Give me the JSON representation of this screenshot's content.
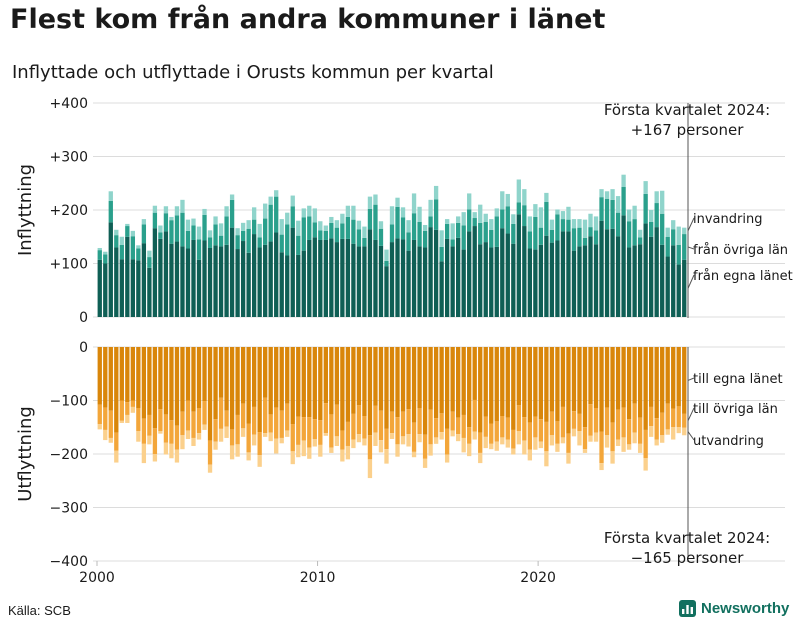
{
  "title": "Flest kom från andra kommuner i länet",
  "subtitle": "Inflyttade och utflyttade i Orusts kommun per kvartal",
  "source": "Källa: SCB",
  "brand": "Newsworthy",
  "colors": {
    "in_lan": "#0f5f55",
    "in_ovriga": "#2aa08c",
    "in_invandring": "#8fd4cb",
    "out_lan": "#d9860a",
    "out_ovriga": "#f3a63a",
    "out_utvandring": "#fbd08c",
    "brand": "#12705f"
  },
  "chart_data": [
    {
      "type": "bar",
      "stacked": true,
      "panel": "inflyttning",
      "ylabel": "Inflyttning",
      "ylim": [
        0,
        400
      ],
      "yticks": [
        "0",
        "+100",
        "+200",
        "+300",
        "+400"
      ],
      "ytick_values": [
        0,
        100,
        200,
        300,
        400
      ],
      "x_start": "2000Q1",
      "x_end": "2024Q1",
      "xticks": [
        "2000",
        "2010",
        "2020"
      ],
      "annotation": [
        "Första kvartalet 2024:",
        "+167 personer"
      ],
      "series": [
        {
          "name": "från egna länet",
          "values": [
            107,
            100,
            177,
            130,
            108,
            150,
            108,
            106,
            138,
            92,
            166,
            146,
            160,
            137,
            141,
            132,
            128,
            144,
            107,
            143,
            129,
            134,
            132,
            135,
            167,
            127,
            142,
            120,
            155,
            130,
            135,
            141,
            158,
            121,
            115,
            167,
            116,
            124,
            144,
            149,
            144,
            144,
            147,
            140,
            146,
            146,
            137,
            132,
            132,
            164,
            144,
            133,
            95,
            140,
            147,
            145,
            124,
            144,
            132,
            130,
            168,
            163,
            104,
            146,
            132,
            148,
            126,
            160,
            170,
            136,
            140,
            130,
            131,
            166,
            156,
            137,
            192,
            170,
            128,
            126,
            135,
            152,
            139,
            143,
            160,
            160,
            124,
            132,
            134,
            151,
            136,
            180,
            164,
            165,
            151,
            190,
            130,
            134,
            136,
            175,
            150,
            168,
            135,
            113,
            134,
            98,
            107
          ]
        },
        {
          "name": "från övriga län",
          "values": [
            18,
            17,
            40,
            23,
            27,
            20,
            43,
            22,
            35,
            20,
            29,
            12,
            34,
            44,
            49,
            63,
            33,
            27,
            38,
            48,
            20,
            39,
            20,
            53,
            52,
            26,
            19,
            45,
            27,
            19,
            49,
            69,
            67,
            33,
            58,
            40,
            36,
            62,
            44,
            28,
            18,
            17,
            29,
            27,
            29,
            41,
            45,
            32,
            16,
            38,
            66,
            32,
            10,
            33,
            59,
            41,
            34,
            50,
            46,
            31,
            20,
            57,
            27,
            28,
            13,
            28,
            45,
            41,
            15,
            40,
            38,
            33,
            57,
            35,
            51,
            37,
            22,
            39,
            32,
            61,
            32,
            63,
            24,
            49,
            23,
            22,
            42,
            35,
            14,
            17,
            26,
            44,
            57,
            54,
            44,
            53,
            49,
            49,
            13,
            55,
            28,
            45,
            58,
            37,
            30,
            37,
            48
          ]
        },
        {
          "name": "invandring",
          "values": [
            4,
            5,
            18,
            10,
            15,
            4,
            10,
            6,
            10,
            12,
            13,
            13,
            13,
            6,
            17,
            24,
            21,
            13,
            24,
            11,
            13,
            15,
            23,
            19,
            10,
            13,
            15,
            16,
            23,
            25,
            28,
            15,
            12,
            29,
            22,
            20,
            28,
            17,
            20,
            26,
            17,
            10,
            11,
            14,
            18,
            21,
            26,
            16,
            21,
            23,
            19,
            14,
            21,
            34,
            17,
            19,
            23,
            37,
            28,
            11,
            31,
            25,
            31,
            9,
            30,
            12,
            25,
            30,
            11,
            34,
            15,
            20,
            15,
            34,
            23,
            18,
            43,
            30,
            28,
            24,
            38,
            17,
            19,
            9,
            15,
            24,
            17,
            16,
            34,
            25,
            26,
            15,
            14,
            20,
            31,
            23,
            22,
            25,
            14,
            24,
            22,
            22,
            43,
            17,
            17,
            34,
            12
          ]
        }
      ]
    },
    {
      "type": "bar",
      "stacked": true,
      "panel": "utflyttning",
      "ylabel": "Utflyttning",
      "ylim": [
        -400,
        0
      ],
      "yticks": [
        "0",
        "−100",
        "−200",
        "−300",
        "−400"
      ],
      "ytick_values": [
        0,
        -100,
        -200,
        -300,
        -400
      ],
      "x_start": "2000Q1",
      "x_end": "2024Q1",
      "xticks": [
        "2000",
        "2010",
        "2020"
      ],
      "annotation": [
        "Första kvartalet 2024:",
        "−165 personer"
      ],
      "series": [
        {
          "name": "till egna länet",
          "values": [
            -108,
            -113,
            -119,
            -160,
            -100,
            -103,
            -100,
            -114,
            -134,
            -127,
            -152,
            -116,
            -126,
            -137,
            -147,
            -121,
            -100,
            -121,
            -114,
            -101,
            -175,
            -135,
            -95,
            -119,
            -154,
            -127,
            -106,
            -143,
            -112,
            -159,
            -95,
            -126,
            -113,
            -119,
            -106,
            -144,
            -130,
            -131,
            -131,
            -135,
            -137,
            -105,
            -126,
            -108,
            -156,
            -140,
            -125,
            -109,
            -129,
            -165,
            -110,
            -119,
            -153,
            -121,
            -131,
            -121,
            -116,
            -141,
            -114,
            -164,
            -117,
            -133,
            -124,
            -153,
            -121,
            -132,
            -127,
            -150,
            -99,
            -160,
            -130,
            -143,
            -139,
            -129,
            -132,
            -155,
            -109,
            -131,
            -141,
            -130,
            -135,
            -140,
            -121,
            -139,
            -112,
            -162,
            -120,
            -125,
            -150,
            -107,
            -114,
            -158,
            -113,
            -141,
            -117,
            -113,
            -135,
            -106,
            -132,
            -155,
            -112,
            -133,
            -123,
            -106,
            -115,
            -111,
            -125
          ]
        },
        {
          "name": "till övriga län",
          "values": [
            -36,
            -42,
            -51,
            -34,
            -38,
            -24,
            -12,
            -43,
            -47,
            -39,
            -48,
            -41,
            -53,
            -44,
            -45,
            -44,
            -56,
            -49,
            -47,
            -44,
            -45,
            -42,
            -58,
            -30,
            -30,
            -55,
            -46,
            -54,
            -52,
            -43,
            -66,
            -34,
            -58,
            -51,
            -50,
            -51,
            -53,
            -44,
            -57,
            -37,
            -46,
            -56,
            -62,
            -59,
            -36,
            -45,
            -48,
            -54,
            -42,
            -45,
            -50,
            -55,
            -38,
            -40,
            -51,
            -46,
            -47,
            -55,
            -49,
            -45,
            -65,
            -36,
            -35,
            -48,
            -35,
            -31,
            -43,
            -31,
            -59,
            -38,
            -38,
            -38,
            -38,
            -40,
            -41,
            -35,
            -48,
            -44,
            -51,
            -39,
            -42,
            -55,
            -44,
            -42,
            -57,
            -36,
            -33,
            -32,
            -41,
            -59,
            -46,
            -59,
            -52,
            -54,
            -56,
            -56,
            -47,
            -54,
            -49,
            -53,
            -36,
            -40,
            -42,
            -48,
            -35,
            -39,
            -26
          ]
        },
        {
          "name": "utvandring",
          "values": [
            -10,
            -19,
            -9,
            -22,
            -4,
            -15,
            -11,
            -20,
            -36,
            -16,
            -14,
            -5,
            -22,
            -27,
            -24,
            -26,
            -16,
            -15,
            -12,
            -10,
            -15,
            -15,
            -24,
            -21,
            -26,
            -23,
            -16,
            -15,
            -20,
            -22,
            -7,
            -16,
            -28,
            -10,
            -12,
            -24,
            -23,
            -29,
            -21,
            -14,
            -22,
            -5,
            -10,
            -18,
            -22,
            -25,
            -16,
            -15,
            -13,
            -35,
            -25,
            -23,
            -27,
            -11,
            -23,
            -15,
            -23,
            -10,
            -15,
            -17,
            -21,
            -12,
            -14,
            -15,
            -11,
            -13,
            -27,
            -23,
            -15,
            -19,
            -21,
            -10,
            -17,
            -13,
            -15,
            -11,
            -25,
            -26,
            -20,
            -23,
            -12,
            -28,
            -19,
            -15,
            -11,
            -20,
            -14,
            -27,
            -7,
            -11,
            -17,
            -13,
            -23,
            -23,
            -12,
            -27,
            -10,
            -20,
            -17,
            -23,
            -20,
            -11,
            -14,
            -10,
            -23,
            -11,
            -14
          ]
        }
      ]
    }
  ]
}
